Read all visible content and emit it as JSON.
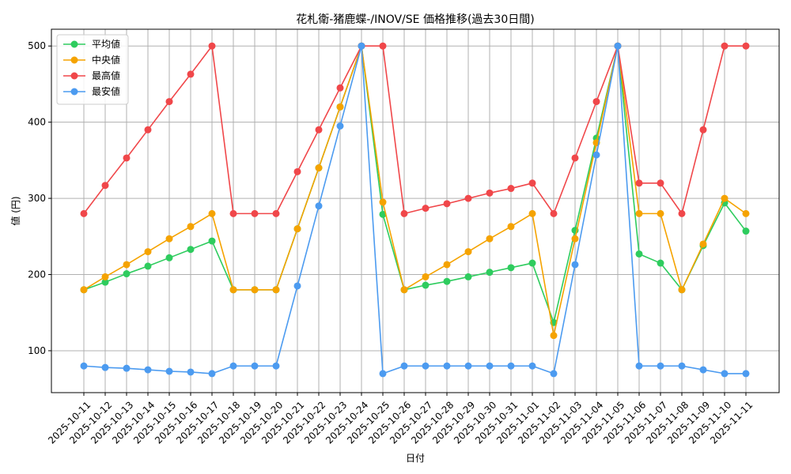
{
  "chart_data": {
    "type": "line",
    "title": "花札衛-猪鹿蝶-/INOV/SE 価格推移(過去30日間)",
    "xlabel": "日付",
    "ylabel": "値 (円)",
    "ylim": [
      45,
      522
    ],
    "yticks": [
      100,
      200,
      300,
      400,
      500
    ],
    "grid": true,
    "legend_position": "top-left",
    "categories": [
      "2025-10-11",
      "2025-10-12",
      "2025-10-13",
      "2025-10-14",
      "2025-10-15",
      "2025-10-16",
      "2025-10-17",
      "2025-10-18",
      "2025-10-19",
      "2025-10-20",
      "2025-10-21",
      "2025-10-22",
      "2025-10-23",
      "2025-10-24",
      "2025-10-25",
      "2025-10-26",
      "2025-10-27",
      "2025-10-28",
      "2025-10-29",
      "2025-10-30",
      "2025-10-31",
      "2025-11-01",
      "2025-11-02",
      "2025-11-03",
      "2025-11-04",
      "2025-11-05",
      "2025-11-06",
      "2025-11-07",
      "2025-11-08",
      "2025-11-09",
      "2025-11-10",
      "2025-11-11"
    ],
    "series": [
      {
        "name": "平均値",
        "color": "#2ecc5e",
        "values": [
          180,
          190,
          201,
          211,
          222,
          233,
          244,
          180,
          180,
          180,
          260,
          340,
          420,
          500,
          279,
          180,
          186,
          191,
          197,
          203,
          209,
          215,
          137,
          258,
          379,
          500,
          227,
          215,
          180,
          238,
          294,
          257
        ]
      },
      {
        "name": "中央値",
        "color": "#f5a300",
        "values": [
          180,
          197,
          213,
          230,
          247,
          263,
          280,
          180,
          180,
          180,
          260,
          340,
          420,
          500,
          295,
          180,
          197,
          213,
          230,
          247,
          263,
          280,
          120,
          247,
          373,
          500,
          280,
          280,
          180,
          240,
          300,
          280
        ]
      },
      {
        "name": "最高値",
        "color": "#f0474a",
        "values": [
          280,
          317,
          353,
          390,
          427,
          463,
          500,
          280,
          280,
          280,
          335,
          390,
          445,
          500,
          500,
          280,
          287,
          293,
          300,
          307,
          313,
          320,
          280,
          353,
          427,
          500,
          320,
          320,
          280,
          390,
          500,
          500
        ]
      },
      {
        "name": "最安値",
        "color": "#4c9bf0",
        "values": [
          80,
          78,
          77,
          75,
          73,
          72,
          70,
          80,
          80,
          80,
          185,
          290,
          395,
          500,
          70,
          80,
          80,
          80,
          80,
          80,
          80,
          80,
          70,
          213,
          357,
          500,
          80,
          80,
          80,
          75,
          70,
          70
        ]
      }
    ]
  }
}
